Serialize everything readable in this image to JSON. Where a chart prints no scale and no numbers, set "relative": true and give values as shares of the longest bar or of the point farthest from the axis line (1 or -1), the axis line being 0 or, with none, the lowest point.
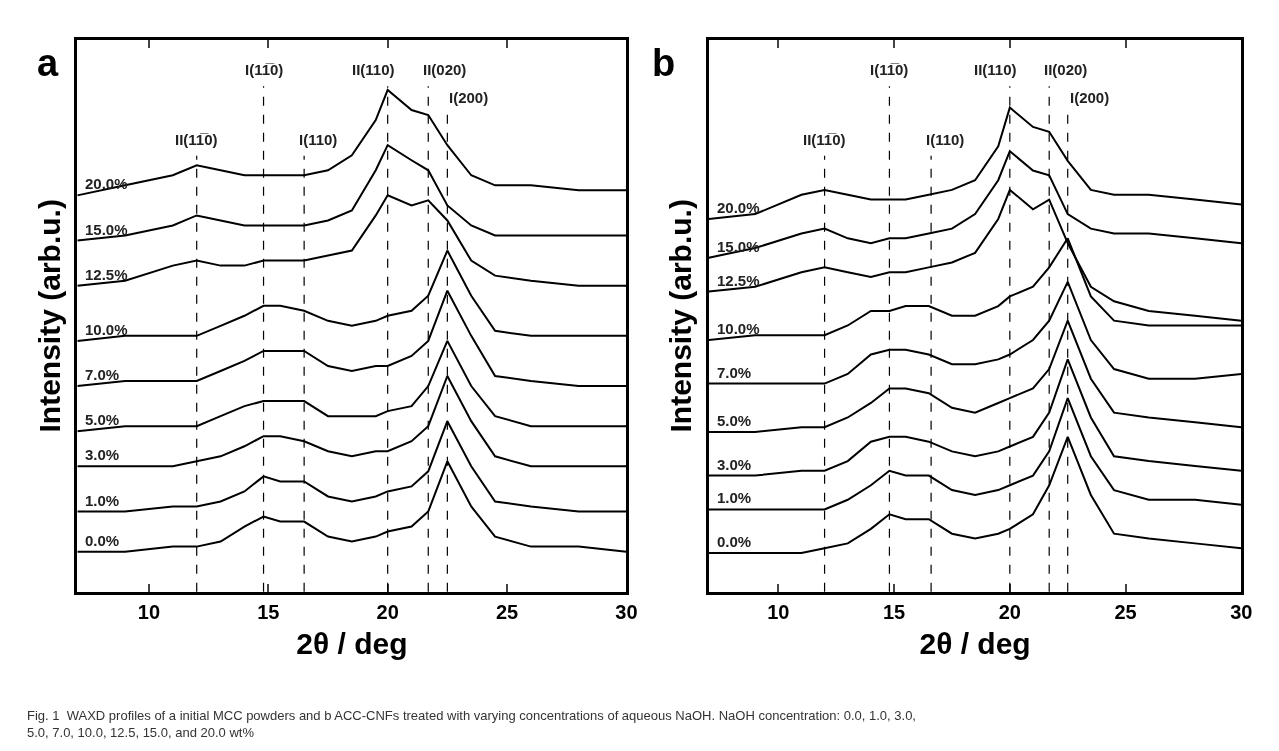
{
  "chart_data": [
    {
      "type": "line",
      "xlabel": "2θ / deg",
      "ylabel": "Intensity (arb.u.)",
      "relative": true,
      "xlim": [
        7,
        30
      ],
      "xticks": [
        10,
        15,
        20,
        25,
        30
      ],
      "tick_labels": "x",
      "line_style": "solid",
      "marker": "none",
      "annotations": [
        "a",
        "Fig. 1  WAXD profiles of a initial MCC powders and b ACC-CNFs treated with varying concentrations of aqueous NaOH. NaOH concentration: 0.0, 1.0, 3.0, 5.0, 7.0, 10.0, 12.5, 15.0, and 20.0 wt%"
      ],
      "x": [
        7,
        9,
        11,
        12,
        13,
        14,
        14.8,
        15.5,
        16.5,
        17.5,
        18.5,
        19.5,
        20,
        21,
        21.7,
        22.5,
        23.5,
        24.5,
        26,
        28,
        30
      ],
      "ref_lines": [
        {
          "axis": "x",
          "value": 12,
          "label": "II(11̅0)",
          "color": "#000000",
          "line_style": "dashed"
        },
        {
          "axis": "x",
          "value": 14.8,
          "label": "I(11̅0)",
          "color": "#000000",
          "line_style": "dashed"
        },
        {
          "axis": "x",
          "value": 16.5,
          "label": "I(110)",
          "color": "#000000",
          "line_style": "dashed"
        },
        {
          "axis": "x",
          "value": 20,
          "label": "II(110)",
          "color": "#000000",
          "line_style": "dashed"
        },
        {
          "axis": "x",
          "value": 21.7,
          "label": "II(020)",
          "color": "#000000",
          "line_style": "dashed"
        },
        {
          "axis": "x",
          "value": 22.5,
          "label": "I(200)",
          "color": "#000000",
          "line_style": "dashed"
        }
      ],
      "series": [
        {
          "name": "0.0%",
          "color": "#000000",
          "values": [
            0.08,
            0.08,
            0.09,
            0.09,
            0.1,
            0.13,
            0.15,
            0.14,
            0.14,
            0.11,
            0.1,
            0.11,
            0.12,
            0.13,
            0.16,
            0.26,
            0.17,
            0.11,
            0.09,
            0.09,
            0.08
          ]
        },
        {
          "name": "1.0%",
          "color": "#000000",
          "values": [
            0.16,
            0.16,
            0.17,
            0.17,
            0.18,
            0.2,
            0.23,
            0.22,
            0.22,
            0.19,
            0.18,
            0.19,
            0.2,
            0.21,
            0.24,
            0.34,
            0.25,
            0.18,
            0.17,
            0.16,
            0.16
          ]
        },
        {
          "name": "3.0%",
          "color": "#000000",
          "values": [
            0.25,
            0.25,
            0.25,
            0.26,
            0.27,
            0.29,
            0.31,
            0.31,
            0.3,
            0.28,
            0.27,
            0.28,
            0.28,
            0.3,
            0.33,
            0.43,
            0.34,
            0.27,
            0.25,
            0.25,
            0.25
          ]
        },
        {
          "name": "5.0%",
          "color": "#000000",
          "values": [
            0.32,
            0.33,
            0.33,
            0.33,
            0.35,
            0.37,
            0.38,
            0.38,
            0.38,
            0.35,
            0.35,
            0.35,
            0.36,
            0.37,
            0.41,
            0.5,
            0.41,
            0.35,
            0.33,
            0.33,
            0.33
          ]
        },
        {
          "name": "7.0%",
          "color": "#000000",
          "values": [
            0.41,
            0.42,
            0.42,
            0.42,
            0.44,
            0.46,
            0.48,
            0.48,
            0.48,
            0.45,
            0.44,
            0.45,
            0.45,
            0.47,
            0.5,
            0.6,
            0.51,
            0.43,
            0.42,
            0.41,
            0.41
          ]
        },
        {
          "name": "10.0%",
          "color": "#000000",
          "values": [
            0.5,
            0.51,
            0.51,
            0.51,
            0.53,
            0.55,
            0.57,
            0.57,
            0.56,
            0.54,
            0.53,
            0.54,
            0.55,
            0.56,
            0.59,
            0.68,
            0.59,
            0.52,
            0.51,
            0.51,
            0.51
          ]
        },
        {
          "name": "12.5%",
          "color": "#000000",
          "values": [
            0.61,
            0.62,
            0.65,
            0.66,
            0.65,
            0.65,
            0.66,
            0.66,
            0.66,
            0.67,
            0.68,
            0.75,
            0.79,
            0.77,
            0.78,
            0.74,
            0.66,
            0.63,
            0.62,
            0.61,
            0.61
          ]
        },
        {
          "name": "15.0%",
          "color": "#000000",
          "values": [
            0.7,
            0.71,
            0.73,
            0.75,
            0.74,
            0.73,
            0.73,
            0.73,
            0.73,
            0.74,
            0.76,
            0.84,
            0.89,
            0.86,
            0.84,
            0.77,
            0.73,
            0.71,
            0.71,
            0.71,
            0.71
          ]
        },
        {
          "name": "20.0%",
          "color": "#000000",
          "values": [
            0.79,
            0.81,
            0.83,
            0.85,
            0.84,
            0.83,
            0.83,
            0.83,
            0.83,
            0.84,
            0.87,
            0.94,
            1,
            0.96,
            0.95,
            0.89,
            0.83,
            0.81,
            0.81,
            0.8,
            0.8
          ]
        }
      ]
    },
    {
      "type": "line",
      "xlabel": "2θ / deg",
      "ylabel": "Intensity (arb.u.)",
      "relative": true,
      "xlim": [
        7,
        30
      ],
      "xticks": [
        10,
        15,
        20,
        25,
        30
      ],
      "tick_labels": "x",
      "line_style": "solid",
      "marker": "none",
      "annotations": [
        "b"
      ],
      "x": [
        7,
        9,
        11,
        12,
        13,
        14,
        14.8,
        15.5,
        16.5,
        17.5,
        18.5,
        19.5,
        20,
        21,
        21.7,
        22.5,
        23.5,
        24.5,
        26,
        28,
        30
      ],
      "ref_lines": [
        {
          "axis": "x",
          "value": 12,
          "label": "II(11̅0)",
          "color": "#000000",
          "line_style": "dashed"
        },
        {
          "axis": "x",
          "value": 14.8,
          "label": "I(11̅0)",
          "color": "#000000",
          "line_style": "dashed"
        },
        {
          "axis": "x",
          "value": 16.6,
          "label": "I(110)",
          "color": "#000000",
          "line_style": "dashed"
        },
        {
          "axis": "x",
          "value": 20,
          "label": "II(110)",
          "color": "#000000",
          "line_style": "dashed"
        },
        {
          "axis": "x",
          "value": 21.7,
          "label": "II(020)",
          "color": "#000000",
          "line_style": "dashed"
        },
        {
          "axis": "x",
          "value": 22.5,
          "label": "I(200)",
          "color": "#000000",
          "line_style": "dashed"
        }
      ],
      "series": [
        {
          "name": "0.0%",
          "color": "#000000",
          "values": [
            0.08,
            0.08,
            0.08,
            0.09,
            0.1,
            0.13,
            0.16,
            0.15,
            0.15,
            0.12,
            0.11,
            0.12,
            0.13,
            0.16,
            0.22,
            0.32,
            0.2,
            0.12,
            0.11,
            0.1,
            0.09
          ]
        },
        {
          "name": "1.0%",
          "color": "#000000",
          "values": [
            0.17,
            0.17,
            0.17,
            0.17,
            0.19,
            0.22,
            0.25,
            0.24,
            0.24,
            0.21,
            0.2,
            0.21,
            0.22,
            0.24,
            0.29,
            0.4,
            0.28,
            0.21,
            0.19,
            0.19,
            0.18
          ]
        },
        {
          "name": "3.0%",
          "color": "#000000",
          "values": [
            0.24,
            0.24,
            0.25,
            0.25,
            0.27,
            0.31,
            0.32,
            0.32,
            0.31,
            0.29,
            0.28,
            0.29,
            0.3,
            0.32,
            0.37,
            0.48,
            0.36,
            0.28,
            0.27,
            0.26,
            0.25
          ]
        },
        {
          "name": "5.0%",
          "color": "#000000",
          "values": [
            0.33,
            0.33,
            0.34,
            0.34,
            0.36,
            0.39,
            0.42,
            0.42,
            0.41,
            0.38,
            0.37,
            0.39,
            0.4,
            0.42,
            0.46,
            0.56,
            0.44,
            0.37,
            0.36,
            0.35,
            0.34
          ]
        },
        {
          "name": "7.0%",
          "color": "#000000",
          "values": [
            0.43,
            0.43,
            0.43,
            0.43,
            0.45,
            0.49,
            0.5,
            0.5,
            0.49,
            0.47,
            0.47,
            0.48,
            0.49,
            0.52,
            0.56,
            0.64,
            0.52,
            0.46,
            0.44,
            0.44,
            0.45
          ]
        },
        {
          "name": "10.0%",
          "color": "#000000",
          "values": [
            0.52,
            0.53,
            0.53,
            0.53,
            0.55,
            0.58,
            0.58,
            0.59,
            0.59,
            0.57,
            0.57,
            0.59,
            0.61,
            0.63,
            0.67,
            0.73,
            0.61,
            0.56,
            0.55,
            0.55,
            0.55
          ]
        },
        {
          "name": "12.5%",
          "color": "#000000",
          "values": [
            0.62,
            0.63,
            0.66,
            0.67,
            0.66,
            0.65,
            0.66,
            0.66,
            0.67,
            0.68,
            0.7,
            0.77,
            0.83,
            0.79,
            0.81,
            0.72,
            0.63,
            0.6,
            0.58,
            0.57,
            0.56
          ]
        },
        {
          "name": "15.0%",
          "color": "#000000",
          "values": [
            0.69,
            0.71,
            0.74,
            0.75,
            0.73,
            0.72,
            0.73,
            0.73,
            0.74,
            0.75,
            0.78,
            0.85,
            0.91,
            0.87,
            0.86,
            0.78,
            0.75,
            0.74,
            0.74,
            0.73,
            0.72
          ]
        },
        {
          "name": "20.0%",
          "color": "#000000",
          "values": [
            0.77,
            0.78,
            0.82,
            0.83,
            0.82,
            0.81,
            0.81,
            0.81,
            0.82,
            0.83,
            0.85,
            0.92,
            1,
            0.96,
            0.95,
            0.89,
            0.83,
            0.82,
            0.82,
            0.81,
            0.8
          ]
        }
      ]
    }
  ]
}
